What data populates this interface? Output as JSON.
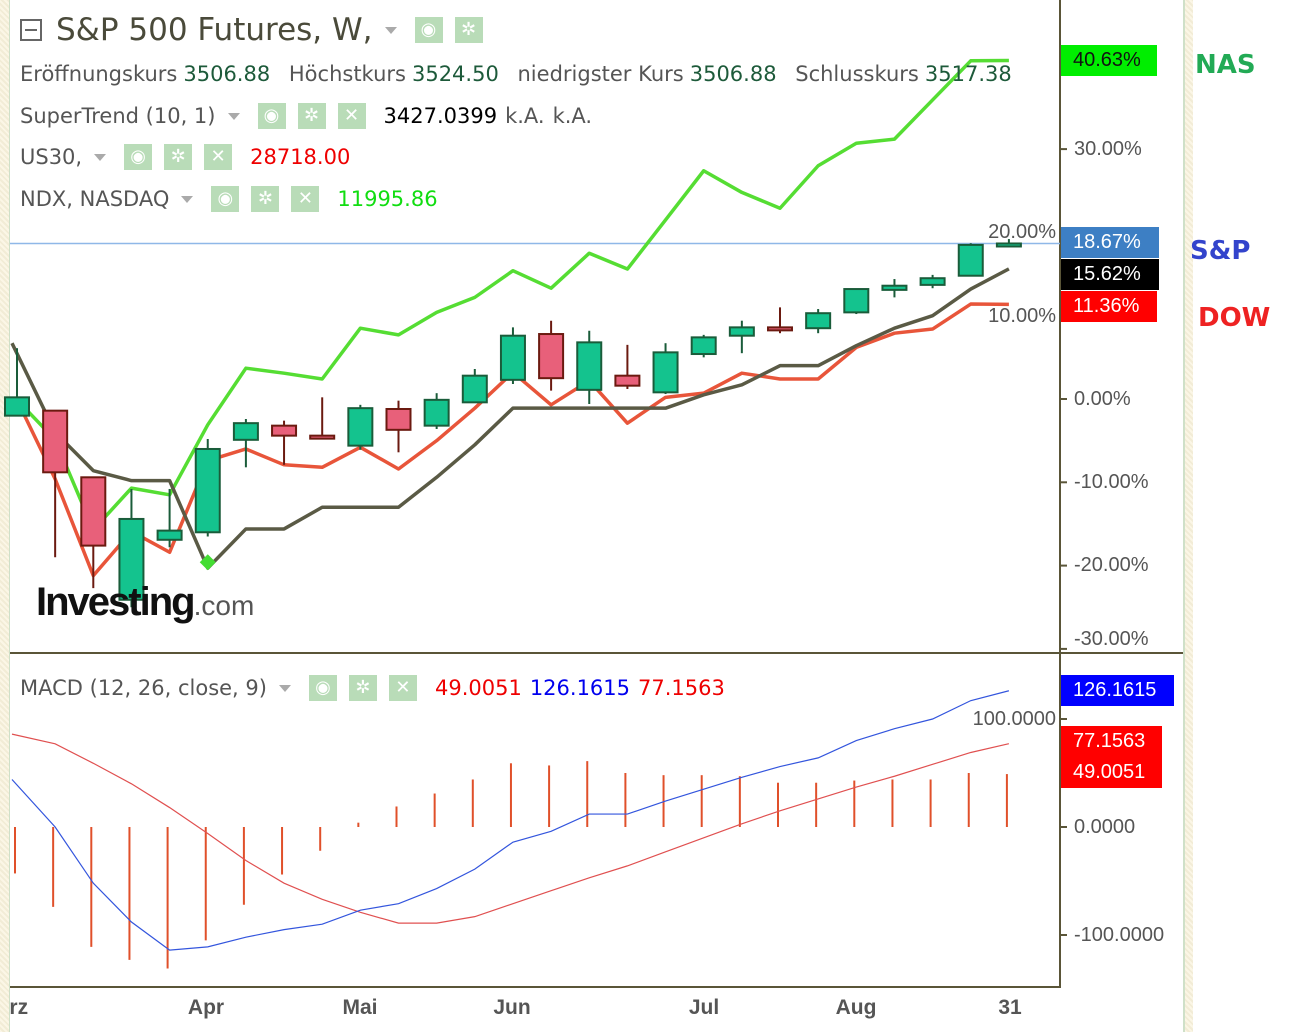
{
  "header": {
    "title": "S&P 500 Futures, W,",
    "ohlc": [
      {
        "label": "Eröffnungskurs",
        "value": "3506.88"
      },
      {
        "label": "Höchstkurs",
        "value": "3524.50"
      },
      {
        "label": "niedrigster Kurs",
        "value": "3506.88"
      },
      {
        "label": "Schlusskurs",
        "value": "3517.38"
      }
    ]
  },
  "indicators": [
    {
      "name": "SuperTrend (10, 1)",
      "values": [
        "3427.0399",
        "k.A.",
        "k.A."
      ],
      "color": "#000000"
    },
    {
      "name": "US30,",
      "values": [
        "28718.00"
      ],
      "color": "#ff0000"
    },
    {
      "name": "NDX, NASDAQ",
      "values": [
        "11995.86"
      ],
      "color": "#00dd00"
    }
  ],
  "macd_legend": {
    "name": "MACD (12, 26, close, 9)",
    "values": [
      {
        "v": "49.0051",
        "color": "#ee0000"
      },
      {
        "v": "126.1615",
        "color": "#0000ee"
      },
      {
        "v": "77.1563",
        "color": "#ee0000"
      }
    ]
  },
  "icons": {
    "visibility": "eye-icon",
    "settings": "gear-icon",
    "remove": "close-icon",
    "collapse": "minus-box-icon"
  },
  "side_labels": {
    "nas": "NAS",
    "sp": "S&P",
    "dow": "DOW"
  },
  "price_tags": {
    "nas": "40.63%",
    "sp": "18.67%",
    "supertrend": "15.62%",
    "dow": "11.36%"
  },
  "macd_tags": {
    "macd": "126.1615",
    "signal": "77.1563",
    "hist": "49.0051"
  },
  "price_axis_ticks": [
    "30.00%",
    "20.00%",
    "10.00%",
    "0.00%",
    "-10.00%",
    "-20.00%",
    "-30.00%"
  ],
  "macd_axis_ticks": [
    "100.0000",
    "0.0000",
    "-100.0000"
  ],
  "x_ticks": [
    "Mrz",
    "Apr",
    "Mai",
    "Jun",
    "Jul",
    "Aug",
    "31"
  ],
  "logo": {
    "text": "Investing",
    "suffix": ".com"
  },
  "colors": {
    "up": "#14c38e",
    "down": "#e8607a",
    "nas": "#55dd33",
    "dow": "#e8553a",
    "supertrend": "#5a5a45",
    "macd": "#3355dd",
    "signal": "#e05050",
    "hist": "#e0502a"
  },
  "chart_data": [
    {
      "type": "candlestick",
      "ylabel": "",
      "ylim": [
        -30,
        50
      ],
      "units": "percent",
      "candles": [
        {
          "o": -2.0,
          "h": 6.1,
          "l": -2.0,
          "c": 0.2
        },
        {
          "o": -1.4,
          "h": -1.4,
          "l": -19.0,
          "c": -8.8
        },
        {
          "o": -9.4,
          "h": -9.4,
          "l": -22.7,
          "c": -17.6
        },
        {
          "o": -24.1,
          "h": -10.8,
          "l": -25.0,
          "c": -14.4
        },
        {
          "o": -16.9,
          "h": -10.8,
          "l": -17.8,
          "c": -15.8
        },
        {
          "o": -16.0,
          "h": -4.8,
          "l": -16.5,
          "c": -6.0
        },
        {
          "o": -4.9,
          "h": -2.4,
          "l": -8.2,
          "c": -2.9
        },
        {
          "o": -3.2,
          "h": -2.6,
          "l": -7.9,
          "c": -4.4
        },
        {
          "o": -4.4,
          "h": 0.2,
          "l": -4.6,
          "c": -4.6
        },
        {
          "o": -5.6,
          "h": -0.7,
          "l": -6.1,
          "c": -1.1
        },
        {
          "o": -1.2,
          "h": -0.2,
          "l": -6.4,
          "c": -3.7
        },
        {
          "o": -3.2,
          "h": 0.7,
          "l": -3.6,
          "c": -0.1
        },
        {
          "o": -0.4,
          "h": 3.6,
          "l": -0.4,
          "c": 2.8
        },
        {
          "o": 2.3,
          "h": 8.6,
          "l": 1.8,
          "c": 7.6
        },
        {
          "o": 7.8,
          "h": 9.4,
          "l": 1.0,
          "c": 2.5
        },
        {
          "o": 1.1,
          "h": 8.2,
          "l": -0.6,
          "c": 6.8
        },
        {
          "o": 2.8,
          "h": 6.5,
          "l": 1.2,
          "c": 1.6
        },
        {
          "o": 0.8,
          "h": 6.7,
          "l": 0.6,
          "c": 5.6
        },
        {
          "o": 5.4,
          "h": 7.7,
          "l": 5.0,
          "c": 7.4
        },
        {
          "o": 7.6,
          "h": 9.4,
          "l": 5.5,
          "c": 8.6
        },
        {
          "o": 8.6,
          "h": 11.0,
          "l": 7.9,
          "c": 8.5
        },
        {
          "o": 8.5,
          "h": 10.8,
          "l": 7.9,
          "c": 10.3
        },
        {
          "o": 10.4,
          "h": 13.2,
          "l": 10.2,
          "c": 13.2
        },
        {
          "o": 13.1,
          "h": 14.4,
          "l": 12.2,
          "c": 13.6
        },
        {
          "o": 13.7,
          "h": 14.9,
          "l": 13.3,
          "c": 14.5
        },
        {
          "o": 14.8,
          "h": 18.7,
          "l": 14.8,
          "c": 18.5
        },
        {
          "o": 18.4,
          "h": 19.2,
          "l": 18.4,
          "c": 18.67
        }
      ],
      "series": [
        {
          "name": "NAS",
          "values": [
            -0.1,
            -4.9,
            -15.7,
            -10.7,
            -11.5,
            -3.1,
            3.7,
            3.1,
            2.4,
            8.5,
            7.7,
            10.4,
            12.2,
            15.4,
            13.3,
            17.5,
            15.6,
            21.5,
            27.4,
            24.8,
            22.9,
            28.0,
            30.7,
            31.2,
            35.9,
            40.6,
            40.63
          ]
        },
        {
          "name": "DOW",
          "values": [
            -0.1,
            -9.6,
            -21.2,
            -15.9,
            -18.4,
            -7.4,
            -6.0,
            -7.9,
            -8.2,
            -5.8,
            -8.4,
            -5.0,
            -1.1,
            3.2,
            -0.7,
            2.2,
            -2.9,
            0.2,
            0.7,
            3.1,
            2.4,
            2.4,
            6.2,
            7.9,
            8.4,
            11.4,
            11.36
          ]
        },
        {
          "name": "SuperTrend (10, 1)",
          "values": [
            6.7,
            -4.0,
            -8.6,
            -9.8,
            -9.8,
            -20.3,
            -15.6,
            -15.6,
            -13.0,
            -13.0,
            -13.0,
            -9.4,
            -5.5,
            -1.1,
            -1.1,
            -1.1,
            -1.1,
            -1.1,
            0.5,
            1.7,
            4.0,
            4.0,
            6.4,
            8.5,
            10.0,
            13.2,
            15.62
          ]
        }
      ]
    },
    {
      "type": "bar",
      "title": "MACD (12, 26, close, 9)",
      "ylim": [
        -140,
        140
      ],
      "histogram": [
        -43,
        -74,
        -111,
        -123,
        -131,
        -105,
        -72,
        -44,
        -22,
        4,
        19,
        31,
        44,
        59,
        57,
        61,
        50,
        48,
        48,
        47,
        41,
        41,
        43,
        44,
        44,
        50,
        49
      ],
      "macd": [
        44,
        0,
        -52,
        -88,
        -114,
        -111,
        -102,
        -95,
        -90,
        -77,
        -71,
        -57,
        -39,
        -14,
        -4,
        12,
        12,
        24,
        35,
        46,
        56,
        64,
        80,
        91,
        100,
        117,
        126.16
      ],
      "signal": [
        86,
        77,
        59,
        40,
        18,
        -6,
        -31,
        -52,
        -67,
        -79,
        -89,
        -89,
        -83,
        -71,
        -59,
        -47,
        -36,
        -23,
        -10,
        3,
        15,
        26,
        37,
        47,
        58,
        69,
        77.16
      ]
    }
  ]
}
